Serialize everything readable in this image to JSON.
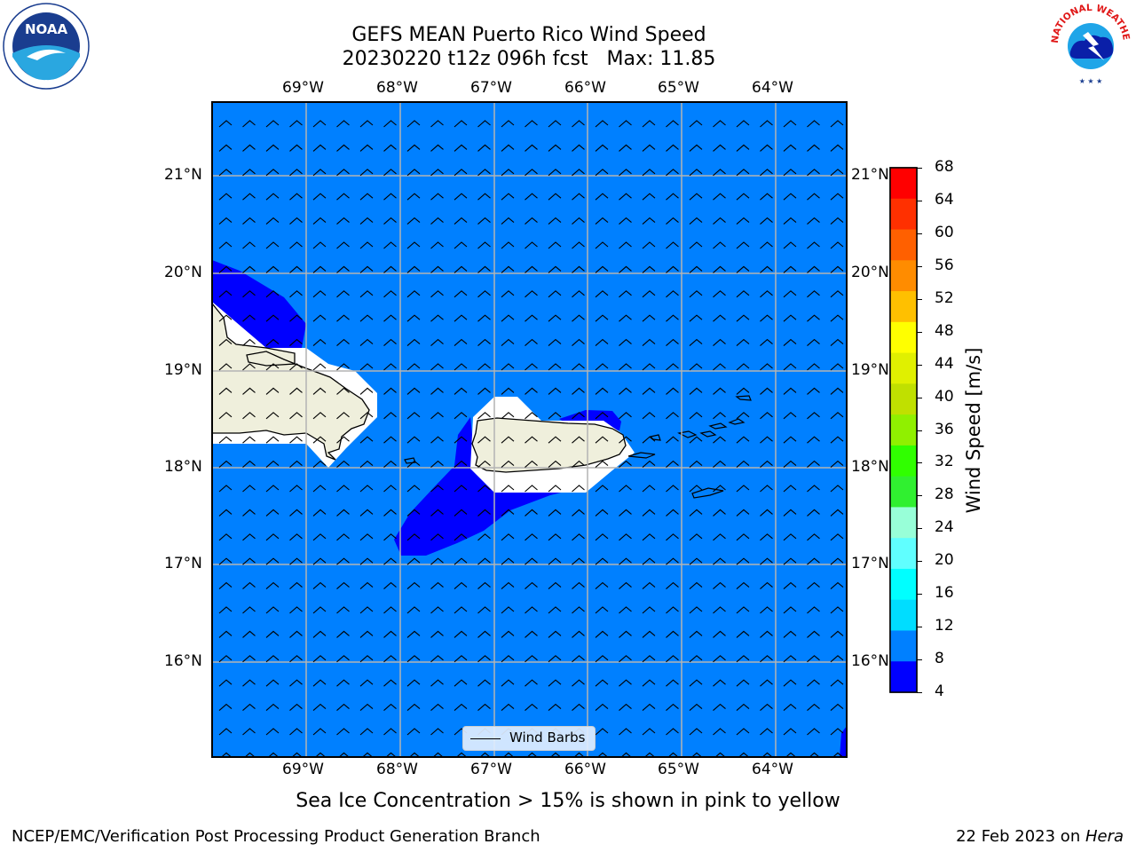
{
  "title": {
    "line1": "GEFS MEAN Puerto Rico Wind Speed",
    "line2": "20230220 t12z 096h fcst   Max: 11.85"
  },
  "map": {
    "lon_labels": [
      "69°W",
      "68°W",
      "67°W",
      "66°W",
      "65°W",
      "64°W"
    ],
    "lat_labels": [
      "21°N",
      "20°N",
      "19°N",
      "18°N",
      "17°N",
      "16°N"
    ],
    "ocean_color": "#0080ff",
    "low_wind_color": "#0000ff",
    "land_color": "#efefdc",
    "legend_label": "Wind Barbs"
  },
  "colorbar": {
    "label": "Wind Speed [m/s]",
    "ticks": [
      "68",
      "64",
      "60",
      "56",
      "52",
      "48",
      "44",
      "40",
      "36",
      "32",
      "28",
      "24",
      "20",
      "16",
      "12",
      "8",
      "4"
    ],
    "colors": [
      "#ff0000",
      "#ff3000",
      "#ff6000",
      "#ff8c00",
      "#ffc000",
      "#ffff00",
      "#e0f000",
      "#c0e000",
      "#90f000",
      "#30ff00",
      "#30f030",
      "#98ffd8",
      "#60ffff",
      "#00ffff",
      "#00ddff",
      "#0080ff",
      "#0000ff"
    ]
  },
  "caption": "Sea Ice Concentration > 15% is shown in pink to yellow",
  "footer": {
    "left": "NCEP/EMC/Verification Post Processing Product Generation Branch",
    "right_prefix": "22 Feb 2023 on ",
    "right_italic": "Hera"
  },
  "logos": {
    "noaa_text": "NOAA",
    "nws_text": "NATIONAL WEATHER SERVICE"
  }
}
